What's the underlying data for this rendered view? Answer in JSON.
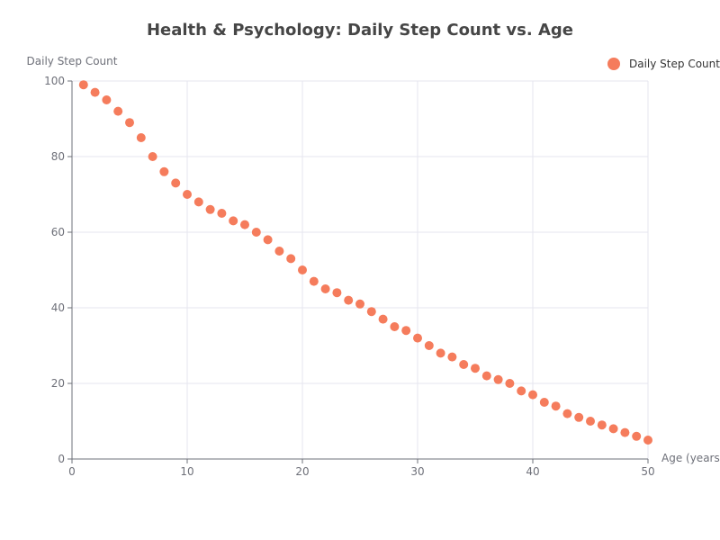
{
  "chart_data": {
    "type": "scatter",
    "title": "Health & Psychology: Daily Step Count vs. Age",
    "xlabel": "Age (years)",
    "ylabel": "Daily Step Count",
    "xlim": [
      0,
      50
    ],
    "ylim": [
      0,
      100
    ],
    "xticks": [
      0,
      10,
      20,
      30,
      40,
      50
    ],
    "yticks": [
      0,
      20,
      40,
      60,
      80,
      100
    ],
    "grid": true,
    "legend_position": "top-right",
    "series": [
      {
        "name": "Daily Step Count",
        "color": "#f57c5c",
        "x": [
          1,
          2,
          3,
          4,
          5,
          6,
          7,
          8,
          9,
          10,
          11,
          12,
          13,
          14,
          15,
          16,
          17,
          18,
          19,
          20,
          21,
          22,
          23,
          24,
          25,
          26,
          27,
          28,
          29,
          30,
          31,
          32,
          33,
          34,
          35,
          36,
          37,
          38,
          39,
          40,
          41,
          42,
          43,
          44,
          45,
          46,
          47,
          48,
          49,
          50
        ],
        "y": [
          99,
          97,
          95,
          92,
          89,
          85,
          80,
          76,
          73,
          70,
          68,
          66,
          65,
          63,
          62,
          60,
          58,
          55,
          53,
          50,
          47,
          45,
          44,
          42,
          41,
          39,
          37,
          35,
          34,
          32,
          30,
          28,
          27,
          25,
          24,
          22,
          21,
          20,
          18,
          17,
          15,
          14,
          12,
          11,
          10,
          9,
          8,
          7,
          6,
          5
        ]
      }
    ]
  }
}
